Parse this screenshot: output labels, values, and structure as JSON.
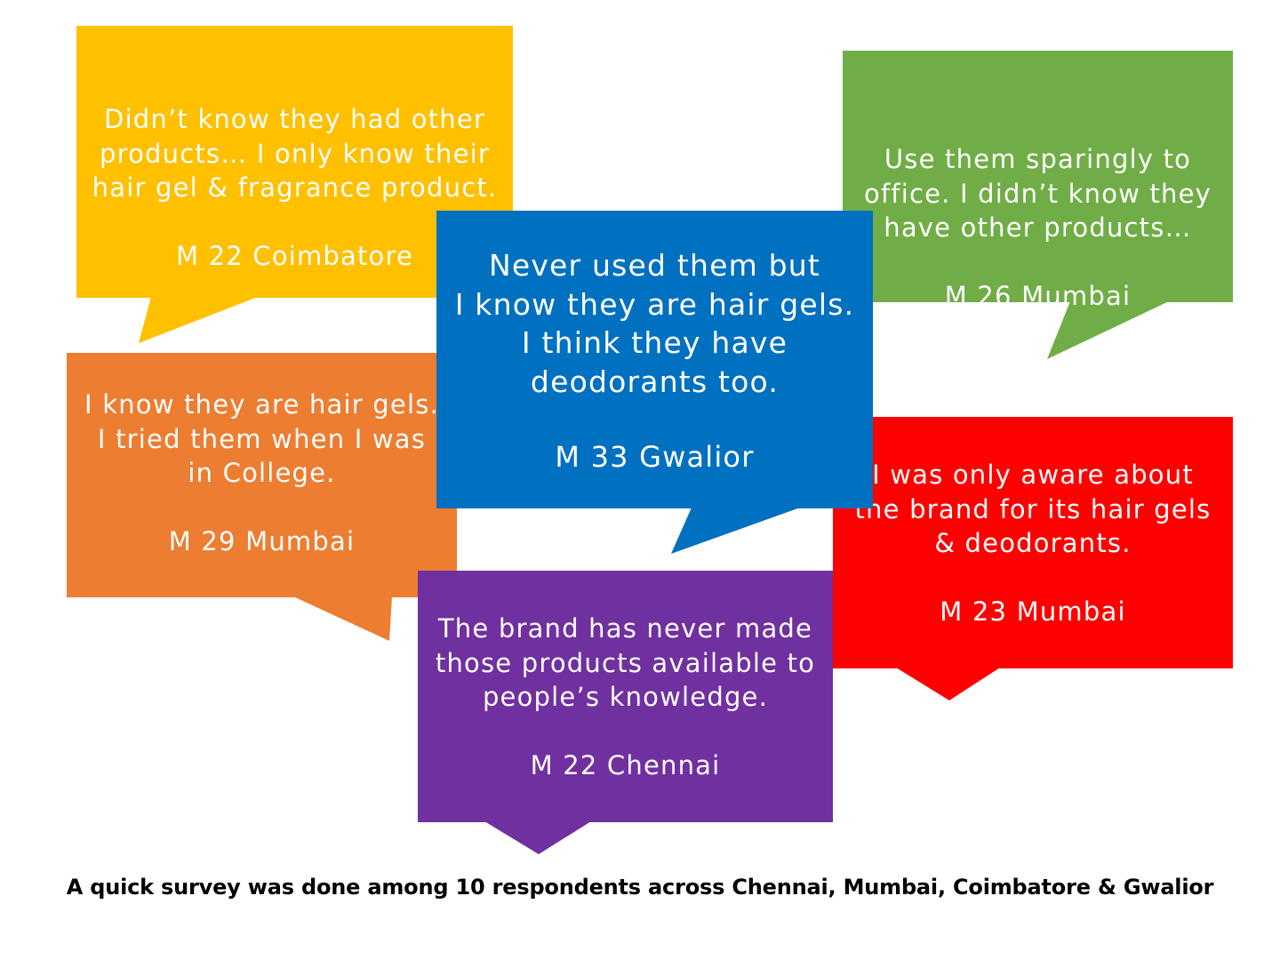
{
  "colors": {
    "yellow": "#FFC000",
    "green": "#70AD47",
    "blue": "#0070C0",
    "orange": "#ED7D31",
    "red": "#FF0000",
    "purple": "#7030A0"
  },
  "bubbles": [
    {
      "quote": "Didn’t know they had other\nproducts… I only know their\nhair gel & fragrance product.",
      "respondent": "M 22 Coimbatore",
      "color": "#FFC000"
    },
    {
      "quote": "Use them sparingly to\noffice. I didn’t know they\nhave other products…",
      "respondent": "M 26 Mumbai",
      "color": "#70AD47"
    },
    {
      "quote": "Never used them but\nI know they are hair gels.\nI think they have\ndeodorants too.",
      "respondent": "M 33 Gwalior",
      "color": "#0070C0"
    },
    {
      "quote": "I know they are hair gels.\nI tried them when I was\nin College.",
      "respondent": "M 29 Mumbai",
      "color": "#ED7D31"
    },
    {
      "quote": "I was only aware about\nthe brand for its hair gels\n& deodorants.",
      "respondent": "M 23 Mumbai",
      "color": "#FF0000"
    },
    {
      "quote": "The brand has never made\nthose products available to\npeople’s knowledge.",
      "respondent": "M 22 Chennai",
      "color": "#7030A0"
    }
  ],
  "caption": "A quick survey was done among 10 respondents across Chennai, Mumbai, Coimbatore & Gwalior"
}
